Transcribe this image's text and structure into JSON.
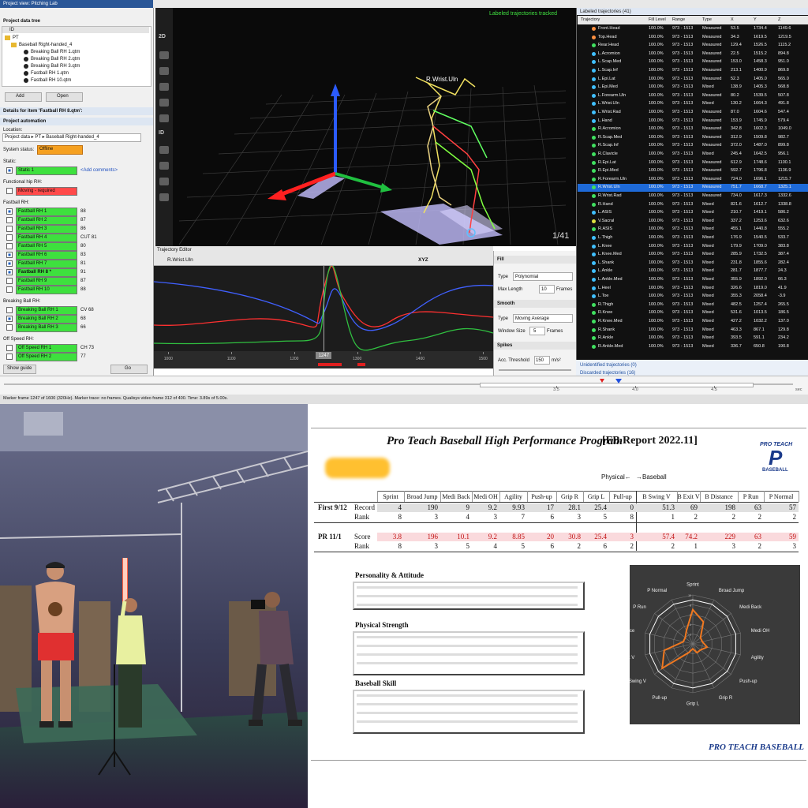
{
  "qtm": {
    "left": {
      "title": "Project view: Pitching Lab",
      "tree_header": "Project data tree",
      "id_col": "ID",
      "root": "PT",
      "folder": "Baseball Right-handed_4",
      "files": [
        "Breaking Ball RH 1.qtm",
        "Breaking Ball RH 2.qtm",
        "Breaking Ball RH 3.qtm",
        "Fastball RH 1.qtm",
        "Fastball RH 10.qtm"
      ],
      "add": "Add",
      "open": "Open",
      "details": "Details for item 'Fastball RH 8.qtm':",
      "automation": "Project automation",
      "location_label": "Location:",
      "location": "Project data ▸ PT ▸ Baseball Right-handed_4",
      "status_label": "System status:",
      "status": "Offline",
      "groups": [
        {
          "label": "Static:",
          "items": [
            {
              "name": "Static 1",
              "comment": "<Add comments>",
              "checked": true,
              "color": "#3ee03e"
            }
          ]
        },
        {
          "label": "Functional hip RH:",
          "items": [
            {
              "name": "Moving - required",
              "checked": false,
              "color": "#ff4a4a"
            }
          ]
        },
        {
          "label": "Fastball RH:",
          "items": [
            {
              "name": "Fastball RH 1",
              "comment": 88,
              "checked": true,
              "color": "#3ee03e"
            },
            {
              "name": "Fastball RH 2",
              "comment": 87,
              "checked": false,
              "color": "#3ee03e"
            },
            {
              "name": "Fastball RH 3",
              "comment": 86,
              "checked": false,
              "color": "#3ee03e"
            },
            {
              "name": "Fastball RH 4",
              "comment": "CUT 81",
              "checked": false,
              "color": "#3ee03e"
            },
            {
              "name": "Fastball RH 5",
              "comment": 80,
              "checked": false,
              "color": "#3ee03e"
            },
            {
              "name": "Fastball RH 6",
              "comment": 83,
              "checked": true,
              "color": "#3ee03e"
            },
            {
              "name": "Fastball RH 7",
              "comment": 81,
              "checked": true,
              "color": "#3ee03e"
            },
            {
              "name": "Fastball RH 8 *",
              "comment": 91,
              "checked": true,
              "color": "#3ee03e"
            },
            {
              "name": "Fastball RH 9",
              "comment": 87,
              "checked": false,
              "color": "#3ee03e"
            },
            {
              "name": "Fastball RH 10",
              "comment": 88,
              "checked": false,
              "color": "#3ee03e"
            }
          ]
        },
        {
          "label": "Breaking Ball RH:",
          "items": [
            {
              "name": "Breaking Ball RH 1",
              "comment": "CV 68",
              "checked": false,
              "color": "#3ee03e"
            },
            {
              "name": "Breaking Ball RH 2",
              "comment": 68,
              "checked": true,
              "color": "#3ee03e"
            },
            {
              "name": "Breaking Ball RH 3",
              "comment": 66,
              "checked": false,
              "color": "#3ee03e"
            }
          ]
        },
        {
          "label": "Off Speed RH:",
          "items": [
            {
              "name": "Off Speed RH 1",
              "comment": "CH 73",
              "checked": false,
              "color": "#3ee03e"
            },
            {
              "name": "Off Speed RH 2",
              "comment": 77,
              "checked": false,
              "color": "#3ee03e"
            }
          ]
        }
      ],
      "show_guide": "Show guide",
      "go": "Go"
    },
    "view3d": {
      "status": "Labeled trajectories tracked",
      "marker": "R.Wrist.Uln",
      "page": "1/41",
      "tools": [
        "2D",
        "ID"
      ]
    },
    "editor": {
      "title": "Trajectory Editor",
      "trajectory": "R.Wrist.Uln",
      "axis": "XYZ",
      "xlim": [
        977,
        1516
      ],
      "xticks": [
        1000,
        1100,
        1200,
        1300,
        1400,
        1500
      ],
      "frame": 1247
    },
    "gap": {
      "fill": "Fill",
      "type_label": "Type",
      "type": "Polynomial",
      "max_label": "Max Length",
      "max": 10,
      "frames": "Frames",
      "smooth": "Smooth",
      "smooth_type_label": "Type",
      "smooth_type": "Moving Average",
      "window_label": "Window Size",
      "window": 5,
      "window_unit": "Frames",
      "spikes": "Spikes",
      "acc_label": "Acc. Threshold",
      "acc": 150,
      "acc_unit": "m/s²"
    },
    "table": {
      "title": "Labeled trajectories (41)",
      "columns": [
        "Trajectory",
        "Fill Level",
        "Range",
        "Type",
        "X",
        "Y",
        "Z"
      ],
      "rows": [
        [
          "Front.Head",
          "100.0%",
          "973 - 1513",
          "Measured",
          "53.5",
          "1734.4",
          "1149.6"
        ],
        [
          "Top.Head",
          "100.0%",
          "973 - 1513",
          "Measured",
          "34.3",
          "1619.5",
          "1219.5"
        ],
        [
          "Rear.Head",
          "100.0%",
          "973 - 1513",
          "Measured",
          "129.4",
          "1526.5",
          "1115.2"
        ],
        [
          "L.Acromion",
          "100.0%",
          "973 - 1513",
          "Measured",
          "22.5",
          "1515.2",
          "894.8"
        ],
        [
          "L.Scap.Med",
          "100.0%",
          "973 - 1513",
          "Measured",
          "153.0",
          "1458.3",
          "951.0"
        ],
        [
          "L.Scap.Inf",
          "100.0%",
          "973 - 1513",
          "Measured",
          "213.1",
          "1400.9",
          "869.8"
        ],
        [
          "L.Epi.Lat",
          "100.0%",
          "973 - 1513",
          "Measured",
          "52.3",
          "1405.0",
          "565.0"
        ],
        [
          "L.Epi.Med",
          "100.0%",
          "973 - 1513",
          "Mixed",
          "138.9",
          "1405.3",
          "568.8"
        ],
        [
          "L.Forearm.Uln",
          "100.0%",
          "973 - 1513",
          "Measured",
          "80.2",
          "1539.5",
          "507.8"
        ],
        [
          "L.Wrist.Uln",
          "100.0%",
          "973 - 1513",
          "Mixed",
          "130.2",
          "1664.3",
          "491.8"
        ],
        [
          "L.Wrist.Rad",
          "100.0%",
          "973 - 1513",
          "Measured",
          "87.0",
          "1604.6",
          "547.4"
        ],
        [
          "L.Hand",
          "100.0%",
          "973 - 1513",
          "Measured",
          "153.9",
          "1745.9",
          "579.4"
        ],
        [
          "R.Acromion",
          "100.0%",
          "973 - 1513",
          "Measured",
          "342.8",
          "1602.3",
          "1049.0"
        ],
        [
          "R.Scap.Med",
          "100.0%",
          "973 - 1513",
          "Measured",
          "312.9",
          "1509.8",
          "982.7"
        ],
        [
          "R.Scap.Inf",
          "100.0%",
          "973 - 1513",
          "Measured",
          "372.0",
          "1487.0",
          "899.8"
        ],
        [
          "R.Clavicle",
          "100.0%",
          "973 - 1513",
          "Mixed",
          "245.4",
          "1642.5",
          "956.1"
        ],
        [
          "R.Epi.Lat",
          "100.0%",
          "973 - 1513",
          "Measured",
          "612.9",
          "1748.6",
          "1100.1"
        ],
        [
          "R.Epi.Med",
          "100.0%",
          "973 - 1513",
          "Measured",
          "592.7",
          "1796.8",
          "1136.9"
        ],
        [
          "R.Forearm.Uln",
          "100.0%",
          "973 - 1513",
          "Measured",
          "724.0",
          "1696.1",
          "1215.7"
        ],
        [
          "R.Wrist.Uln",
          "100.0%",
          "973 - 1513",
          "Measured",
          "751.7",
          "1668.7",
          "1325.1"
        ],
        [
          "R.Wrist.Rad",
          "100.0%",
          "973 - 1513",
          "Measured",
          "734.0",
          "1617.3",
          "1332.6"
        ],
        [
          "R.Hand",
          "100.0%",
          "973 - 1513",
          "Mixed",
          "821.6",
          "1612.7",
          "1338.8"
        ],
        [
          "L.ASIS",
          "100.0%",
          "973 - 1513",
          "Mixed",
          "210.7",
          "1419.1",
          "586.2"
        ],
        [
          "V.Sacral",
          "100.0%",
          "973 - 1513",
          "Mixed",
          "337.2",
          "1253.6",
          "632.6"
        ],
        [
          "R.ASIS",
          "100.0%",
          "973 - 1513",
          "Mixed",
          "455.1",
          "1440.8",
          "555.2"
        ],
        [
          "L.Thigh",
          "100.0%",
          "973 - 1513",
          "Mixed",
          "176.9",
          "1540.5",
          "533.7"
        ],
        [
          "L.Knee",
          "100.0%",
          "973 - 1513",
          "Mixed",
          "179.9",
          "1709.0",
          "383.8"
        ],
        [
          "L.Knee.Med",
          "100.0%",
          "973 - 1513",
          "Mixed",
          "285.9",
          "1732.5",
          "387.4"
        ],
        [
          "L.Shank",
          "100.0%",
          "973 - 1513",
          "Mixed",
          "231.8",
          "1855.6",
          "282.4"
        ],
        [
          "L.Ankle",
          "100.0%",
          "973 - 1513",
          "Mixed",
          "281.7",
          "1877.7",
          "24.3"
        ],
        [
          "L.Ankle.Med",
          "100.0%",
          "973 - 1513",
          "Mixed",
          "355.9",
          "1892.0",
          "66.3"
        ],
        [
          "L.Heel",
          "100.0%",
          "973 - 1513",
          "Mixed",
          "326.6",
          "1819.0",
          "41.9"
        ],
        [
          "L.Toe",
          "100.0%",
          "973 - 1513",
          "Mixed",
          "355.3",
          "2058.4",
          "-3.9"
        ],
        [
          "R.Thigh",
          "100.0%",
          "973 - 1513",
          "Mixed",
          "482.5",
          "1257.4",
          "265.5"
        ],
        [
          "R.Knee",
          "100.0%",
          "973 - 1513",
          "Mixed",
          "531.6",
          "1013.5",
          "186.5"
        ],
        [
          "R.Knee.Med",
          "100.0%",
          "973 - 1513",
          "Mixed",
          "427.2",
          "1032.2",
          "137.0"
        ],
        [
          "R.Shank",
          "100.0%",
          "973 - 1513",
          "Mixed",
          "463.3",
          "867.1",
          "129.8"
        ],
        [
          "R.Ankle",
          "100.0%",
          "973 - 1513",
          "Mixed",
          "393.5",
          "591.1",
          "234.2"
        ],
        [
          "R.Ankle.Med",
          "100.0%",
          "973 - 1513",
          "Mixed",
          "336.7",
          "650.8",
          "190.8"
        ]
      ],
      "unidentified": "Unidentified trajectories (0)",
      "discarded": "Discarded trajectories (16)"
    },
    "timeline": {
      "xlim": [
        0,
        5
      ],
      "xticks": [
        3.5,
        {
          "value": 4,
          "label": "4.0"
        },
        4.5
      ],
      "unit": "sec"
    },
    "status": "Marker frame 1247 of 1600 (320Hz). Marker trace: no frames. Qualisys video frame 312 of 400. Time: 3.89s of 5.00s."
  },
  "report": {
    "title": "Pro Teach Baseball High Performance Program",
    "code": "[FB Report 2022.11]",
    "logo": {
      "top": "PRO TEACH",
      "letter": "P",
      "bottom": "BASEBALL"
    },
    "physical": "Physical←",
    "baseball": "→Baseball",
    "columns": [
      "Sprint",
      "Broad Jump",
      "Medi Back",
      "Medi OH",
      "Agility",
      "Push-up",
      "Grip R",
      "Grip L",
      "Pull-up",
      "B Swing V",
      "B Exit V",
      "B Distance",
      "P Run",
      "P Normal"
    ],
    "sessions": [
      {
        "name": "First 9/12",
        "rows": [
          {
            "label": "Record",
            "values": [
              4,
              190,
              9,
              9.2,
              9.93,
              17,
              28.1,
              25.4,
              0,
              51.3,
              69,
              198,
              63,
              57
            ]
          },
          {
            "label": "Rank",
            "values": [
              8,
              3,
              4,
              3,
              7,
              6,
              3,
              5,
              8,
              1,
              2,
              2,
              2,
              2
            ]
          }
        ]
      },
      {
        "name": "PR 11/1",
        "rows": [
          {
            "label": "Score",
            "values": [
              3.8,
              196,
              10.1,
              9.2,
              8.85,
              20,
              30.8,
              25.4,
              3,
              57.4,
              74.2,
              229,
              63,
              59
            ]
          },
          {
            "label": "Rank",
            "values": [
              8,
              3,
              5,
              4,
              5,
              6,
              2,
              6,
              2,
              2,
              1,
              3,
              2,
              3
            ]
          }
        ]
      }
    ],
    "sections": [
      "Personality & Attitude",
      "Physical Strength",
      "Baseball Skill"
    ],
    "footer": "PRO TEACH BASEBALL"
  },
  "chart_data": {
    "type": "radar",
    "axes": [
      "Sprint",
      "Broad Jump",
      "Medi Back",
      "Medi OH",
      "Agility",
      "Push-up",
      "Grip R",
      "Grip L",
      "Pull-up",
      "B Swing V",
      "B Exit V",
      "B Distance",
      "P Run",
      "P Normal"
    ],
    "rlim": [
      0,
      10
    ],
    "rticks": [
      2,
      4,
      6,
      8,
      10
    ],
    "series": [
      {
        "color": "#ffffff",
        "values": [
          9,
          9,
          9,
          9,
          9,
          9,
          9,
          9,
          9,
          9,
          9,
          9,
          9,
          9
        ]
      },
      {
        "color": "#f07820",
        "values": [
          7,
          5,
          2,
          2,
          3,
          2,
          2,
          1,
          2,
          8,
          6,
          2,
          2,
          3
        ]
      }
    ]
  }
}
